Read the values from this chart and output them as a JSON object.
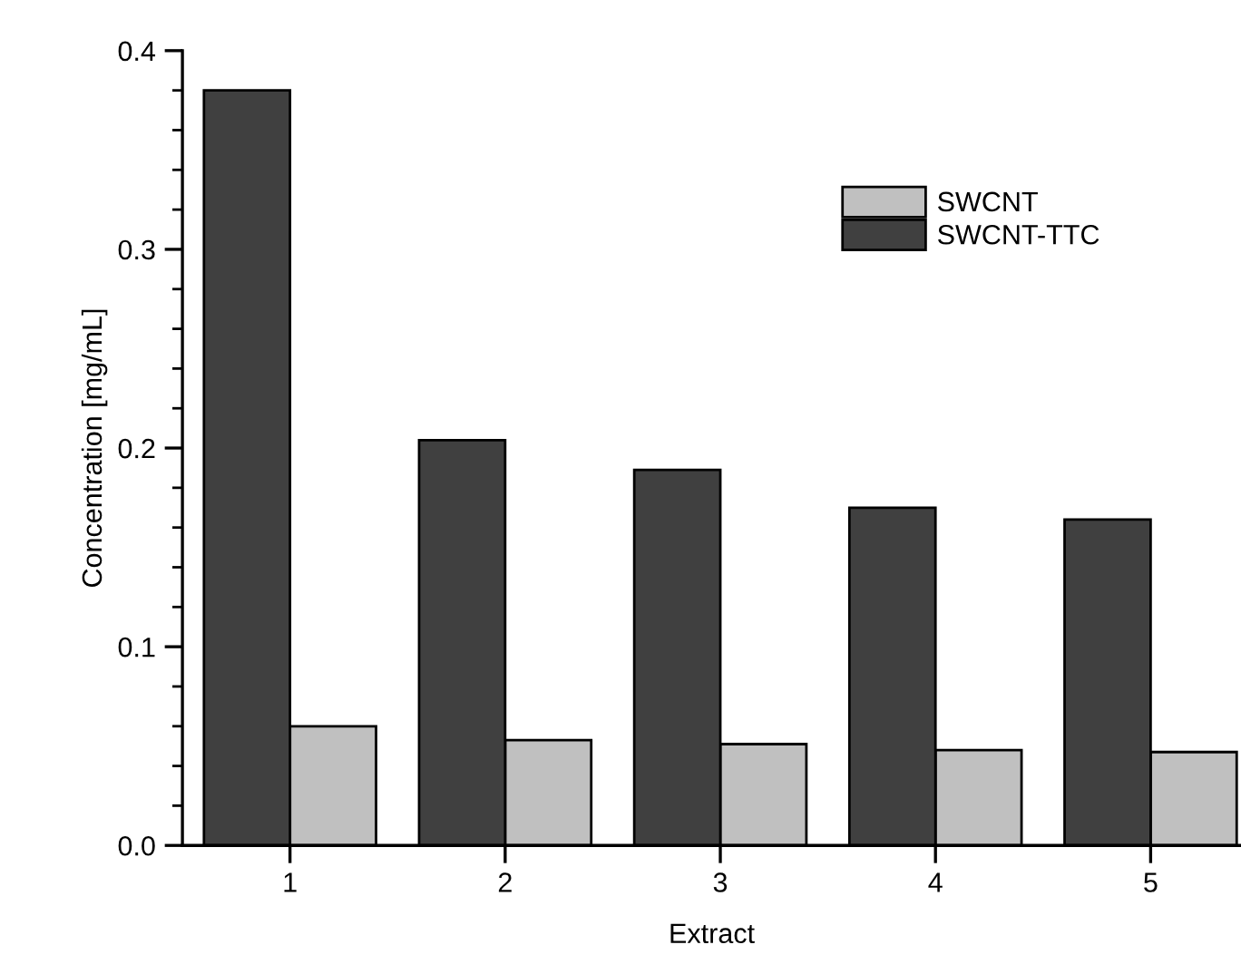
{
  "chart_data": {
    "type": "bar",
    "xlabel": "Extract",
    "ylabel": "Concentration [mg/mL]",
    "categories": [
      "1",
      "2",
      "3",
      "4",
      "5"
    ],
    "series": [
      {
        "name": "SWCNT",
        "color": "#c0c0c0",
        "values": [
          0.06,
          0.053,
          0.051,
          0.048,
          0.047
        ]
      },
      {
        "name": "SWCNT-TTC",
        "color": "#404040",
        "values": [
          0.38,
          0.204,
          0.189,
          0.17,
          0.164
        ]
      }
    ],
    "ylim": [
      0,
      0.4
    ],
    "yticks": [
      {
        "value": 0,
        "label": "0.0"
      },
      0.1,
      0.2,
      0.3,
      0.4
    ],
    "grid": false,
    "legend": "top right"
  }
}
